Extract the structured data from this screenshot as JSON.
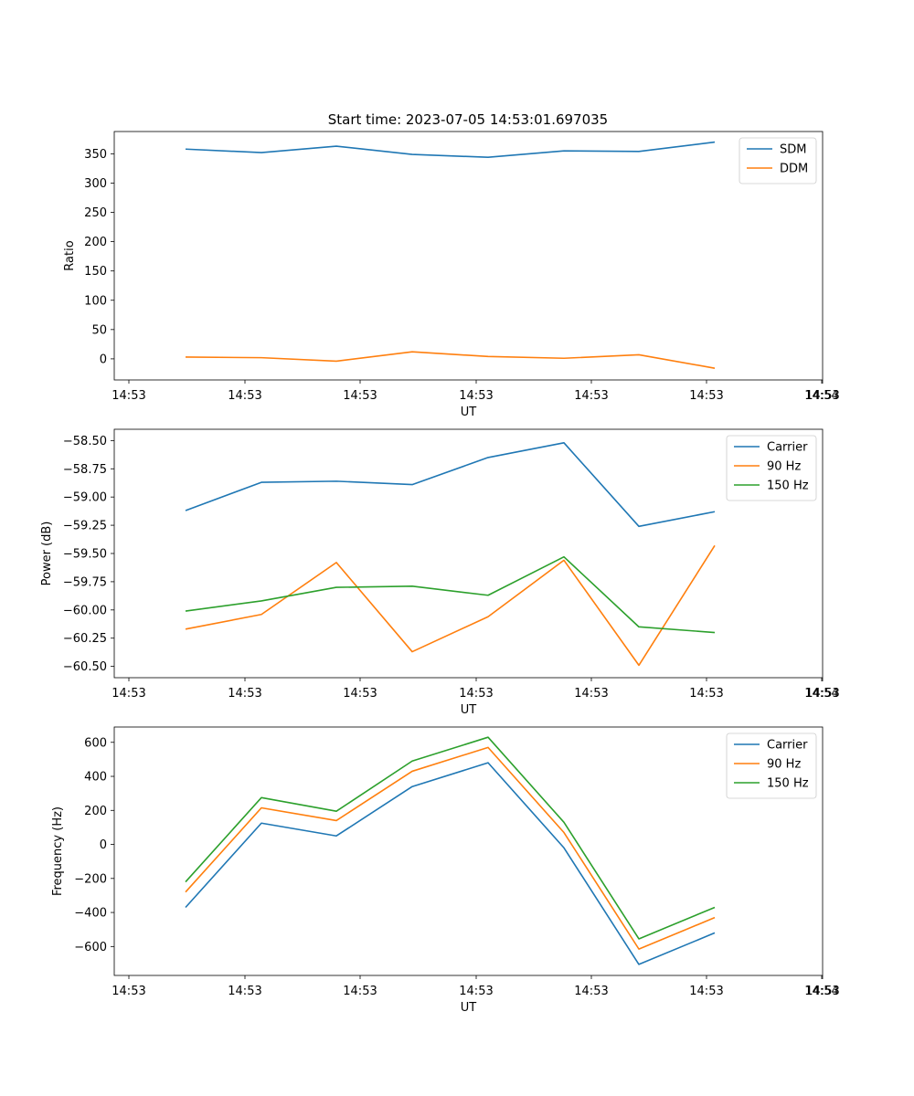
{
  "figure": {
    "title": "Start time: 2023-07-05 14:53:01.697035"
  },
  "chart_data": [
    {
      "type": "line",
      "xlabel": "UT",
      "ylabel": "Ratio",
      "x_tick_labels": [
        "14:53",
        "14:53",
        "14:53",
        "14:53",
        "14:53",
        "14:53",
        "14:53",
        "14:54"
      ],
      "y_ticks": [
        0,
        50,
        100,
        150,
        200,
        250,
        300,
        350
      ],
      "y_tick_labels": [
        "0",
        "50",
        "100",
        "150",
        "200",
        "250",
        "300",
        "350"
      ],
      "ylim": [
        -36,
        388
      ],
      "legend_position": "upper-right",
      "series": [
        {
          "name": "SDM",
          "color": "#1f77b4",
          "values": [
            358,
            352,
            363,
            349,
            344,
            355,
            354,
            370
          ]
        },
        {
          "name": "DDM",
          "color": "#ff7f0e",
          "values": [
            3,
            2,
            -4,
            12,
            4,
            1,
            7,
            -16
          ]
        }
      ]
    },
    {
      "type": "line",
      "xlabel": "UT",
      "ylabel": "Power (dB)",
      "x_tick_labels": [
        "14:53",
        "14:53",
        "14:53",
        "14:53",
        "14:53",
        "14:53",
        "14:53",
        "14:54"
      ],
      "y_ticks": [
        -58.5,
        -58.75,
        -59.0,
        -59.25,
        -59.5,
        -59.75,
        -60.0,
        -60.25,
        -60.5
      ],
      "y_tick_labels": [
        "−58.50",
        "−58.75",
        "−59.00",
        "−59.25",
        "−59.50",
        "−59.75",
        "−60.00",
        "−60.25",
        "−60.50"
      ],
      "ylim": [
        -60.6,
        -58.4
      ],
      "legend_position": "upper-right",
      "series": [
        {
          "name": "Carrier",
          "color": "#1f77b4",
          "values": [
            -59.12,
            -58.87,
            -58.86,
            -58.89,
            -58.65,
            -58.52,
            -59.26,
            -59.13
          ]
        },
        {
          "name": "90 Hz",
          "color": "#ff7f0e",
          "values": [
            -60.17,
            -60.04,
            -59.58,
            -60.37,
            -60.06,
            -59.56,
            -60.49,
            -59.43
          ]
        },
        {
          "name": "150 Hz",
          "color": "#2ca02c",
          "values": [
            -60.01,
            -59.92,
            -59.8,
            -59.79,
            -59.87,
            -59.53,
            -60.15,
            -60.2
          ]
        }
      ]
    },
    {
      "type": "line",
      "xlabel": "UT",
      "ylabel": "Frequency (Hz)",
      "x_tick_labels": [
        "14:53",
        "14:53",
        "14:53",
        "14:53",
        "14:53",
        "14:53",
        "14:53",
        "14:54"
      ],
      "y_ticks": [
        -600,
        -400,
        -200,
        0,
        200,
        400,
        600
      ],
      "y_tick_labels": [
        "−600",
        "−400",
        "−200",
        "0",
        "200",
        "400",
        "600"
      ],
      "ylim": [
        -770,
        690
      ],
      "legend_position": "upper-right",
      "series": [
        {
          "name": "Carrier",
          "color": "#1f77b4",
          "values": [
            -370,
            125,
            50,
            340,
            480,
            -20,
            -705,
            -520
          ]
        },
        {
          "name": "90 Hz",
          "color": "#ff7f0e",
          "values": [
            -280,
            215,
            140,
            430,
            570,
            70,
            -615,
            -430
          ]
        },
        {
          "name": "150 Hz",
          "color": "#2ca02c",
          "values": [
            -220,
            275,
            195,
            490,
            630,
            130,
            -555,
            -370
          ]
        }
      ]
    }
  ]
}
